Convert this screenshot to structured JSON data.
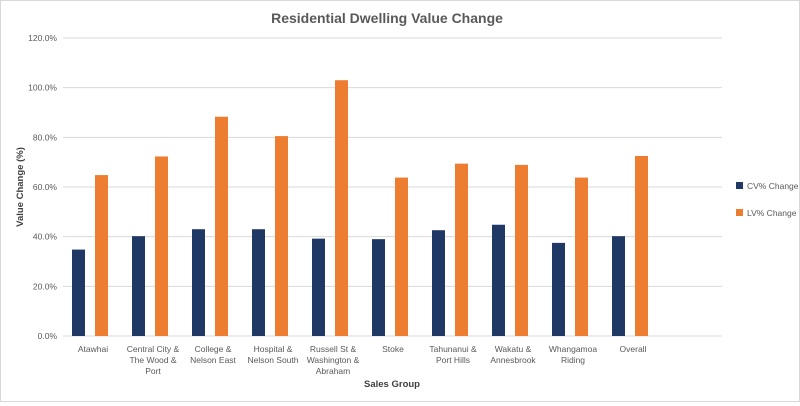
{
  "chart_data": {
    "type": "bar",
    "title": "Residential Dwelling Value Change",
    "xlabel": "Sales Group",
    "ylabel": "Value Change (%)",
    "ylim": [
      0,
      120
    ],
    "yticks": [
      "0.0%",
      "20.0%",
      "40.0%",
      "60.0%",
      "80.0%",
      "100.0%",
      "120.0%"
    ],
    "grid": true,
    "legend_position": "right",
    "categories": [
      [
        "Atawhai"
      ],
      [
        "Central City &",
        "The Wood &",
        "Port"
      ],
      [
        "College &",
        "Nelson East"
      ],
      [
        "Hospital &",
        "Nelson South"
      ],
      [
        "Russell St &",
        "Washington &",
        "Abraham"
      ],
      [
        "Stoke"
      ],
      [
        "Tahunanui &",
        "Port Hills"
      ],
      [
        "Wakatu &",
        "Annesbrook"
      ],
      [
        "Whangamoa",
        "Riding"
      ],
      [
        "Overall"
      ]
    ],
    "series": [
      {
        "name": "CV% Change",
        "color": "#1f3864",
        "values": [
          34.8,
          40.2,
          43.0,
          43.0,
          39.2,
          39.0,
          42.6,
          44.8,
          37.5,
          40.2
        ]
      },
      {
        "name": "LV% Change",
        "color": "#ed7d31",
        "values": [
          64.8,
          72.3,
          88.3,
          80.5,
          103.0,
          63.8,
          69.4,
          68.9,
          63.8,
          72.5
        ]
      }
    ]
  }
}
